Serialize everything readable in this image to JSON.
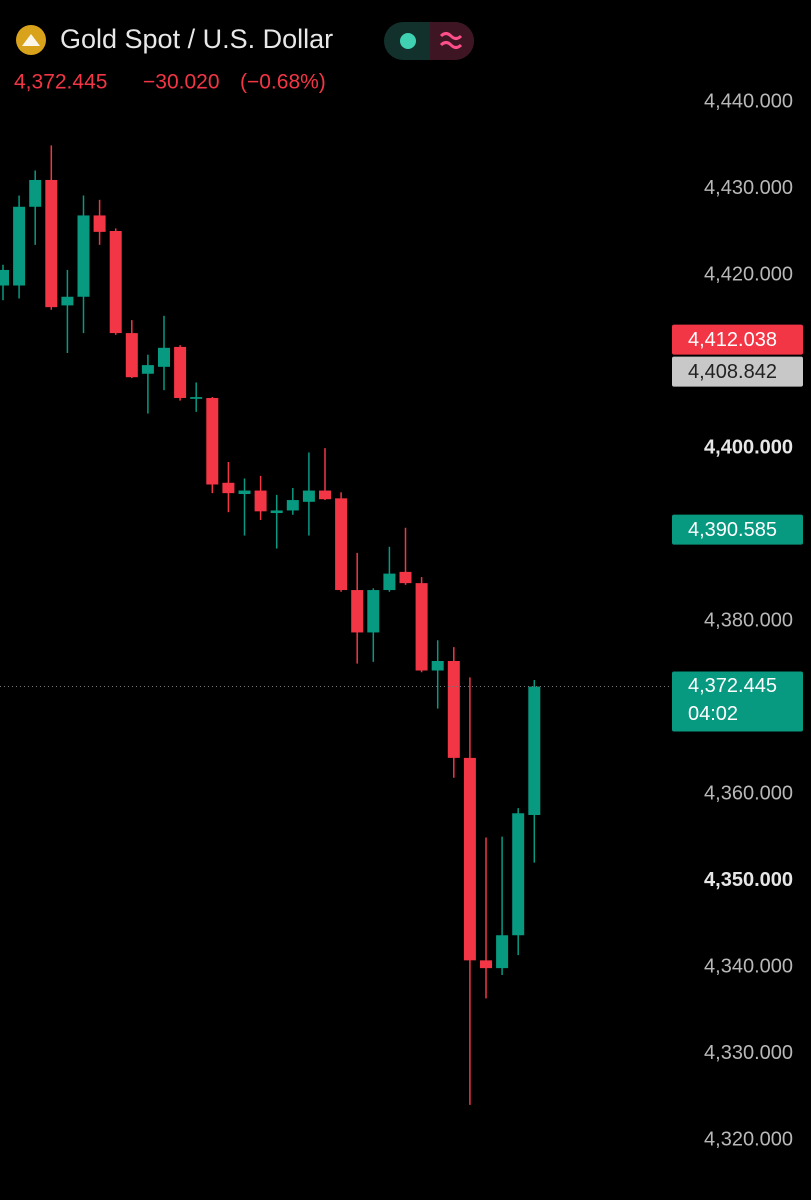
{
  "chart_data": {
    "type": "candlestick",
    "title": "Gold Spot / U.S. Dollar",
    "last_price": {
      "value": 4372.445,
      "label": "4,372.445"
    },
    "change": {
      "value": -30.02,
      "label": "−30.020"
    },
    "change_percent": {
      "value": -0.68,
      "label": "(−0.68%)"
    },
    "countdown": "04:02",
    "up_color": "#089981",
    "down_color": "#f23645",
    "ohlc": {
      "open": [
        4418.8,
        4418.8,
        4427.9,
        4431.0,
        4416.5,
        4417.5,
        4426.9,
        4425.1,
        4413.3,
        4408.6,
        4409.4,
        4411.7,
        4405.7,
        4405.8,
        4396.0,
        4394.7,
        4395.1,
        4392.5,
        4392.8,
        4393.8,
        4395.1,
        4394.2,
        4383.6,
        4378.7,
        4383.6,
        4385.7,
        4384.4,
        4374.3,
        4375.4,
        4364.2,
        4340.8,
        4339.9,
        4343.7,
        4357.6
      ],
      "high": [
        4421.2,
        4429.2,
        4432.1,
        4435.0,
        4420.6,
        4429.2,
        4428.7,
        4425.4,
        4414.8,
        4410.8,
        4415.3,
        4411.9,
        4407.6,
        4405.9,
        4398.4,
        4396.5,
        4396.8,
        4394.6,
        4395.4,
        4399.5,
        4400.0,
        4394.9,
        4387.9,
        4383.8,
        4388.6,
        4390.8,
        4385.1,
        4377.8,
        4377.0,
        4373.5,
        4355.0,
        4355.1,
        4358.4,
        4373.2
      ],
      "low": [
        4417.1,
        4417.3,
        4423.5,
        4416.0,
        4411.0,
        4413.3,
        4423.5,
        4413.1,
        4408.1,
        4404.0,
        4406.7,
        4405.5,
        4404.2,
        4394.8,
        4392.6,
        4389.9,
        4391.7,
        4388.4,
        4392.3,
        4389.9,
        4394.0,
        4383.4,
        4375.1,
        4375.3,
        4383.4,
        4384.2,
        4374.1,
        4369.9,
        4361.9,
        4324.1,
        4336.4,
        4339.1,
        4341.4,
        4352.1
      ],
      "close": [
        4420.6,
        4427.9,
        4431.0,
        4416.3,
        4417.5,
        4426.9,
        4425.0,
        4413.3,
        4408.2,
        4409.6,
        4411.6,
        4405.8,
        4405.9,
        4395.8,
        4394.8,
        4395.1,
        4392.7,
        4392.8,
        4394.0,
        4395.1,
        4394.1,
        4383.6,
        4378.7,
        4383.6,
        4385.5,
        4384.4,
        4374.3,
        4375.4,
        4364.2,
        4340.8,
        4339.9,
        4343.7,
        4357.8,
        4372.445
      ]
    },
    "ylim": [
      4313.1,
      4451.8
    ],
    "yticks": [
      {
        "value": 4440,
        "label": "4,440.000"
      },
      {
        "value": 4430,
        "label": "4,430.000"
      },
      {
        "value": 4420,
        "label": "4,420.000"
      },
      {
        "value": 4400,
        "label": "4,400.000",
        "bold": true
      },
      {
        "value": 4380,
        "label": "4,380.000"
      },
      {
        "value": 4360,
        "label": "4,360.000"
      },
      {
        "value": 4350,
        "label": "4,350.000",
        "bold": true
      },
      {
        "value": 4340,
        "label": "4,340.000"
      },
      {
        "value": 4330,
        "label": "4,330.000"
      },
      {
        "value": 4320,
        "label": "4,320.000"
      }
    ],
    "price_labels": [
      {
        "value": 4412.038,
        "label": "4,412.038",
        "color": "#f23645"
      },
      {
        "value": 4408.842,
        "label": "4,408.842",
        "color": "#c8c8c8"
      },
      {
        "value": 4390.585,
        "label": "4,390.585",
        "color": "#089981"
      }
    ]
  }
}
